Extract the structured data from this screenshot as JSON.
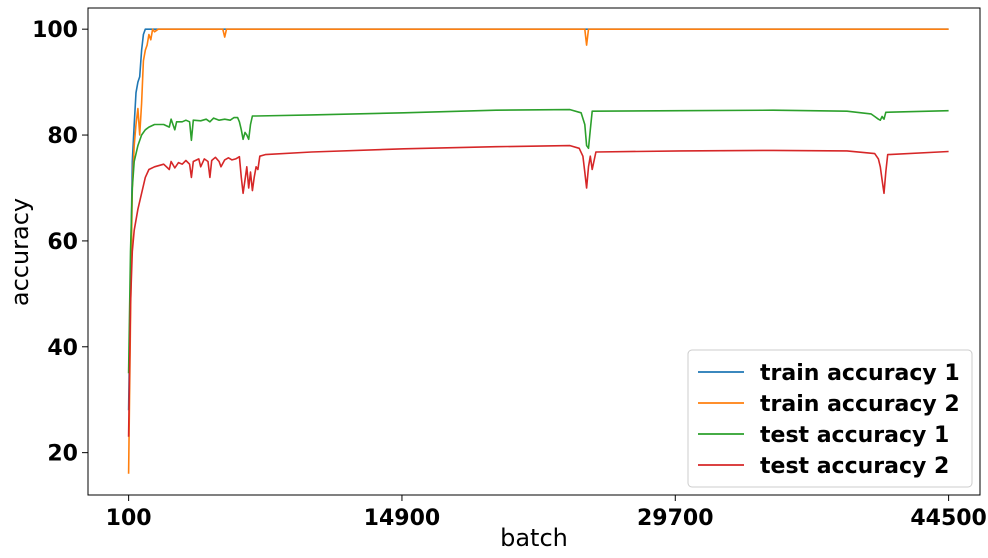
{
  "chart_data": {
    "type": "line",
    "title": "",
    "xlabel": "batch",
    "ylabel": "accuracy",
    "xlim": [
      -2100,
      46200
    ],
    "ylim": [
      12,
      104
    ],
    "xticks": [
      100,
      14900,
      29700,
      44500
    ],
    "xtick_labels": [
      "100",
      "14900",
      "29700",
      "44500"
    ],
    "yticks": [
      20,
      40,
      60,
      80,
      100
    ],
    "ytick_labels": [
      "20",
      "40",
      "60",
      "80",
      "100"
    ],
    "legend": {
      "location": "lower-right"
    },
    "grid": false,
    "series": [
      {
        "name": "train accuracy 1",
        "color": "#1f77b4",
        "points": [
          [
            100,
            28
          ],
          [
            200,
            52
          ],
          [
            300,
            75
          ],
          [
            400,
            82
          ],
          [
            500,
            88
          ],
          [
            600,
            90
          ],
          [
            700,
            91
          ],
          [
            800,
            96
          ],
          [
            900,
            99
          ],
          [
            1000,
            100
          ],
          [
            44500,
            100
          ]
        ]
      },
      {
        "name": "train accuracy 2",
        "color": "#ff7f0e",
        "points": [
          [
            100,
            16
          ],
          [
            200,
            45
          ],
          [
            300,
            70
          ],
          [
            400,
            78
          ],
          [
            500,
            82
          ],
          [
            600,
            85
          ],
          [
            700,
            80
          ],
          [
            800,
            86
          ],
          [
            900,
            94
          ],
          [
            1000,
            96
          ],
          [
            1100,
            97
          ],
          [
            1200,
            99
          ],
          [
            1300,
            98
          ],
          [
            1400,
            100
          ],
          [
            1500,
            99.5
          ],
          [
            1700,
            100
          ],
          [
            5200,
            100
          ],
          [
            5300,
            98.5
          ],
          [
            5400,
            100
          ],
          [
            24800,
            100
          ],
          [
            24900,
            97
          ],
          [
            25000,
            100
          ],
          [
            44500,
            100
          ]
        ]
      },
      {
        "name": "test accuracy 1",
        "color": "#2ca02c",
        "points": [
          [
            100,
            35
          ],
          [
            200,
            58
          ],
          [
            300,
            70
          ],
          [
            400,
            75
          ],
          [
            600,
            78
          ],
          [
            800,
            80
          ],
          [
            1000,
            81
          ],
          [
            1200,
            81.5
          ],
          [
            1500,
            82
          ],
          [
            2000,
            82
          ],
          [
            2300,
            81.5
          ],
          [
            2400,
            83
          ],
          [
            2600,
            81
          ],
          [
            2700,
            82.5
          ],
          [
            3000,
            82.5
          ],
          [
            3200,
            82.8
          ],
          [
            3400,
            82.5
          ],
          [
            3500,
            79
          ],
          [
            3600,
            82.8
          ],
          [
            4000,
            82.7
          ],
          [
            4300,
            83
          ],
          [
            4500,
            82.5
          ],
          [
            4700,
            83.2
          ],
          [
            5000,
            82.8
          ],
          [
            5300,
            83
          ],
          [
            5600,
            82.8
          ],
          [
            5800,
            83.3
          ],
          [
            6000,
            83.3
          ],
          [
            6100,
            82.5
          ],
          [
            6200,
            81
          ],
          [
            6300,
            79.2
          ],
          [
            6400,
            80.5
          ],
          [
            6500,
            80
          ],
          [
            6600,
            79.2
          ],
          [
            6700,
            82
          ],
          [
            6800,
            83.6
          ],
          [
            7000,
            83.6
          ],
          [
            10000,
            83.8
          ],
          [
            15000,
            84.2
          ],
          [
            20000,
            84.7
          ],
          [
            24000,
            84.8
          ],
          [
            24600,
            84.2
          ],
          [
            24800,
            82
          ],
          [
            24900,
            78
          ],
          [
            25000,
            77.5
          ],
          [
            25100,
            81
          ],
          [
            25200,
            84.5
          ],
          [
            30000,
            84.6
          ],
          [
            35000,
            84.7
          ],
          [
            39000,
            84.5
          ],
          [
            40300,
            84
          ],
          [
            40500,
            83.5
          ],
          [
            40700,
            83
          ],
          [
            40800,
            82.8
          ],
          [
            40900,
            83.5
          ],
          [
            41000,
            83
          ],
          [
            41100,
            84.3
          ],
          [
            44500,
            84.6
          ]
        ]
      },
      {
        "name": "test accuracy 2",
        "color": "#d62728",
        "points": [
          [
            100,
            23
          ],
          [
            200,
            48
          ],
          [
            300,
            58
          ],
          [
            400,
            62
          ],
          [
            600,
            66
          ],
          [
            800,
            69
          ],
          [
            1000,
            72
          ],
          [
            1200,
            73.5
          ],
          [
            1500,
            74
          ],
          [
            2000,
            74.5
          ],
          [
            2300,
            73.5
          ],
          [
            2400,
            75
          ],
          [
            2600,
            73.8
          ],
          [
            2800,
            74.8
          ],
          [
            3000,
            74.5
          ],
          [
            3200,
            75.2
          ],
          [
            3400,
            74.5
          ],
          [
            3500,
            72
          ],
          [
            3600,
            75
          ],
          [
            3900,
            75.5
          ],
          [
            4000,
            74
          ],
          [
            4200,
            75.5
          ],
          [
            4400,
            75
          ],
          [
            4500,
            72
          ],
          [
            4600,
            75.2
          ],
          [
            4800,
            75.8
          ],
          [
            5000,
            75
          ],
          [
            5100,
            74
          ],
          [
            5300,
            75.3
          ],
          [
            5500,
            75.7
          ],
          [
            5700,
            75.3
          ],
          [
            5900,
            75.5
          ],
          [
            6100,
            75.9
          ],
          [
            6200,
            72
          ],
          [
            6300,
            69
          ],
          [
            6400,
            71.5
          ],
          [
            6500,
            74
          ],
          [
            6600,
            70
          ],
          [
            6700,
            73
          ],
          [
            6800,
            69.5
          ],
          [
            6900,
            72
          ],
          [
            7000,
            74
          ],
          [
            7100,
            73.5
          ],
          [
            7200,
            76
          ],
          [
            7500,
            76.3
          ],
          [
            10000,
            76.8
          ],
          [
            15000,
            77.4
          ],
          [
            20000,
            77.8
          ],
          [
            24000,
            78
          ],
          [
            24500,
            77.5
          ],
          [
            24700,
            76
          ],
          [
            24800,
            73
          ],
          [
            24900,
            70
          ],
          [
            25000,
            74
          ],
          [
            25100,
            76
          ],
          [
            25200,
            73.5
          ],
          [
            25400,
            76.8
          ],
          [
            30000,
            77
          ],
          [
            35000,
            77.1
          ],
          [
            39000,
            77
          ],
          [
            40500,
            76.5
          ],
          [
            40700,
            75.5
          ],
          [
            40800,
            74
          ],
          [
            40900,
            71.5
          ],
          [
            41000,
            69
          ],
          [
            41100,
            73
          ],
          [
            41200,
            76.3
          ],
          [
            44500,
            76.9
          ]
        ]
      }
    ]
  }
}
